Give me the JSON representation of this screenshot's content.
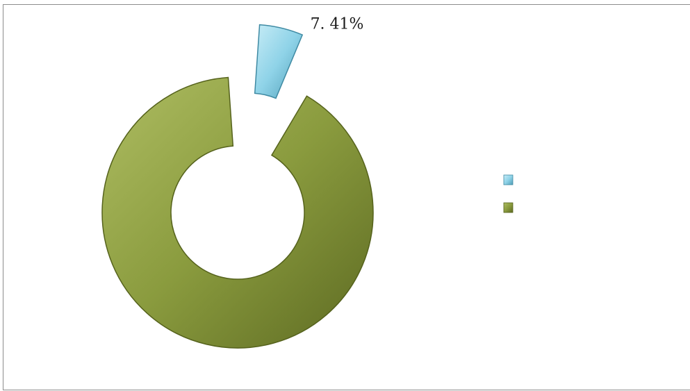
{
  "chart_data": {
    "type": "pie",
    "variant": "doughnut-exploded",
    "categories": [
      "",
      ""
    ],
    "values": [
      7.41,
      92.59
    ],
    "colors": [
      "#8fd3e8",
      "#8a9b3e"
    ],
    "data_labels": [
      "7. 41%",
      ""
    ],
    "legend": {
      "position": "right",
      "entries": [
        "",
        ""
      ]
    }
  }
}
